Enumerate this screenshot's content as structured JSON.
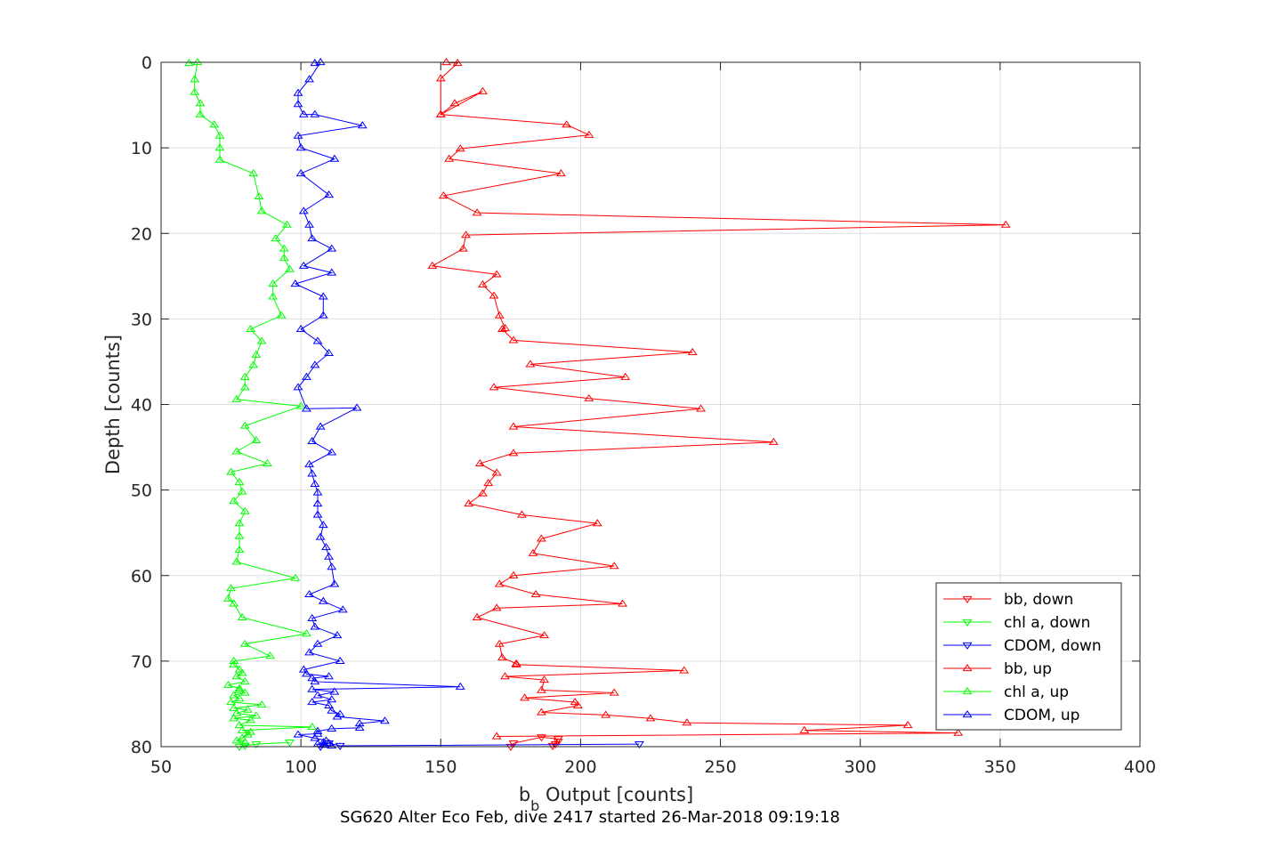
{
  "chart_data": {
    "type": "line",
    "xlabel_main": "b",
    "xlabel_sub": "b",
    "xlabel_rest": " Output [counts]",
    "ylabel": "Depth [counts]",
    "caption": "SG620 Alter Eco Feb, dive 2417 started 26-Mar-2018 09:19:18",
    "xlim": [
      50,
      400
    ],
    "ylim": [
      0,
      80
    ],
    "y_reversed": true,
    "grid": true,
    "legend_position": "bottom-right",
    "xticks": [
      "50",
      "100",
      "150",
      "200",
      "250",
      "300",
      "350",
      "400"
    ],
    "yticks": [
      "0",
      "10",
      "20",
      "30",
      "40",
      "50",
      "60",
      "70",
      "80"
    ],
    "series": [
      {
        "name": "bb, down",
        "color": "#ff0000",
        "marker": "triangle-down",
        "x": [
          192,
          191,
          190,
          192,
          186,
          176,
          175
        ],
        "y": [
          79.4,
          79.7,
          79.9,
          79.1,
          78.9,
          79.6,
          80.0
        ]
      },
      {
        "name": "chl a, down",
        "color": "#00ff00",
        "marker": "triangle-down",
        "x": [
          96,
          84,
          80,
          78
        ],
        "y": [
          79.5,
          79.7,
          79.9,
          80.0
        ]
      },
      {
        "name": "CDOM, down",
        "color": "#0000ff",
        "marker": "triangle-down",
        "x": [
          221,
          114,
          110,
          107
        ],
        "y": [
          79.7,
          79.9,
          79.6,
          80.0
        ]
      },
      {
        "name": "bb, up",
        "color": "#ff0000",
        "marker": "triangle-up",
        "x": [
          152,
          156,
          150,
          150,
          165,
          155,
          150,
          195,
          203,
          157,
          153,
          193,
          151,
          163,
          352,
          159,
          158,
          147,
          170,
          165,
          169,
          171,
          173,
          172,
          176,
          240,
          182,
          216,
          169,
          203,
          243,
          176,
          269,
          176,
          164,
          170,
          167,
          165,
          160,
          179,
          206,
          186,
          183,
          212,
          176,
          171,
          184,
          215,
          170,
          163,
          187,
          171,
          172,
          177,
          177,
          237,
          173,
          187,
          186,
          212,
          180,
          198,
          199,
          186,
          209,
          225,
          238,
          317,
          280,
          335,
          170
        ],
        "y": [
          0.0,
          0.1,
          1.9,
          6.1,
          3.4,
          4.8,
          6.1,
          7.3,
          8.5,
          10.1,
          11.3,
          13.0,
          15.6,
          17.6,
          19.0,
          20.2,
          21.8,
          23.8,
          24.8,
          26.0,
          27.3,
          29.6,
          31.1,
          31.2,
          32.5,
          33.9,
          35.3,
          36.8,
          38.0,
          39.3,
          40.5,
          42.6,
          44.4,
          45.7,
          46.9,
          48.0,
          49.2,
          50.4,
          51.6,
          52.9,
          53.9,
          55.7,
          57.4,
          58.9,
          60.0,
          61.0,
          62.2,
          63.3,
          63.8,
          64.9,
          67.0,
          68.0,
          69.6,
          70.3,
          70.4,
          71.1,
          71.8,
          72.2,
          73.4,
          73.7,
          74.3,
          74.8,
          75.2,
          76.0,
          76.3,
          76.7,
          77.2,
          77.5,
          78.1,
          78.4,
          78.8
        ]
      },
      {
        "name": "chl a, up",
        "color": "#00ff00",
        "marker": "triangle-up",
        "x": [
          60,
          63,
          62,
          62,
          64,
          64,
          69,
          71,
          71,
          71,
          83,
          85,
          86,
          95,
          91,
          94,
          94,
          96,
          90,
          90,
          93,
          82,
          86,
          84,
          83,
          80,
          80,
          77,
          100,
          80,
          84,
          77,
          88,
          75,
          78,
          79,
          76,
          80,
          78,
          78,
          78,
          77,
          98,
          75,
          74,
          76,
          79,
          102,
          80,
          89,
          76,
          76,
          78,
          79,
          77,
          80,
          74,
          78,
          78,
          80,
          76,
          78,
          75,
          86,
          76,
          81,
          77,
          84,
          76,
          82,
          78,
          104,
          79,
          82,
          81,
          79,
          77,
          80
        ],
        "y": [
          0.1,
          0.0,
          2.0,
          3.5,
          4.8,
          6.1,
          7.3,
          8.6,
          10.0,
          11.4,
          13.0,
          15.7,
          17.4,
          19.0,
          20.6,
          21.8,
          22.9,
          24.2,
          25.9,
          27.4,
          29.6,
          31.2,
          32.6,
          34.2,
          35.4,
          36.8,
          38.0,
          39.4,
          40.2,
          42.5,
          44.2,
          45.5,
          46.9,
          47.9,
          49.1,
          50.2,
          51.3,
          52.5,
          53.9,
          55.4,
          57.0,
          58.4,
          60.3,
          61.5,
          62.7,
          63.3,
          64.9,
          66.8,
          68.0,
          69.4,
          70.0,
          70.4,
          71.0,
          71.4,
          71.8,
          72.4,
          72.8,
          73.2,
          73.4,
          73.7,
          74.0,
          74.4,
          74.8,
          75.1,
          75.5,
          75.7,
          76.1,
          76.4,
          76.7,
          76.9,
          77.5,
          77.7,
          78.1,
          78.3,
          78.6,
          79.0,
          79.3,
          79.5
        ]
      },
      {
        "name": "CDOM, up",
        "color": "#0000ff",
        "marker": "triangle-up",
        "x": [
          105,
          107,
          103,
          99,
          99,
          101,
          105,
          122,
          99,
          100,
          112,
          100,
          110,
          101,
          103,
          104,
          111,
          101,
          111,
          98,
          108,
          108,
          100,
          106,
          110,
          105,
          102,
          99,
          102,
          120,
          107,
          104,
          111,
          103,
          104,
          105,
          106,
          106,
          106,
          108,
          107,
          109,
          110,
          111,
          112,
          103,
          108,
          115,
          104,
          105,
          113,
          106,
          103,
          114,
          101,
          102,
          110,
          104,
          105,
          157,
          104,
          112,
          106,
          111,
          104,
          110,
          111,
          114,
          113,
          130,
          121,
          121,
          111,
          106,
          106,
          99,
          105,
          109,
          108,
          110,
          106,
          108,
          111
        ],
        "y": [
          0.1,
          0.0,
          2.0,
          3.6,
          4.9,
          6.1,
          6.1,
          7.4,
          8.6,
          10.0,
          11.3,
          13.0,
          15.5,
          17.4,
          19.0,
          20.6,
          21.8,
          23.8,
          24.6,
          25.9,
          27.4,
          29.6,
          31.2,
          32.6,
          34.0,
          35.4,
          36.8,
          38.0,
          40.5,
          40.4,
          42.6,
          44.3,
          45.6,
          47.0,
          48.1,
          49.3,
          50.3,
          51.6,
          52.9,
          54.1,
          55.5,
          56.7,
          57.8,
          59.0,
          61.0,
          62.2,
          63.0,
          64.0,
          65.0,
          66.0,
          67.0,
          68.0,
          69.0,
          70.0,
          71.0,
          71.5,
          71.8,
          72.0,
          72.4,
          73.0,
          73.3,
          73.6,
          74.0,
          74.5,
          74.8,
          75.2,
          75.8,
          76.2,
          76.5,
          77.0,
          77.3,
          77.8,
          77.9,
          78.2,
          78.5,
          78.6,
          79.0,
          79.3,
          79.5,
          79.6,
          79.7,
          79.8,
          79.9
        ]
      }
    ]
  }
}
